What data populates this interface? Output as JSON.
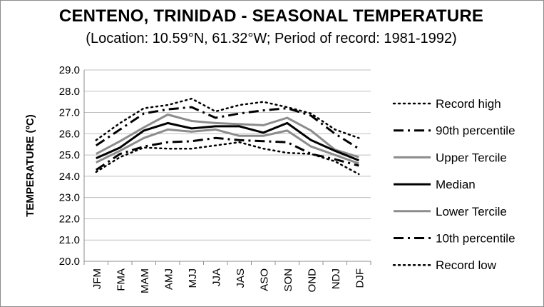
{
  "title": "CENTENO, TRINIDAD - SEASONAL TEMPERATURE",
  "subtitle": "(Location: 10.59°N, 61.32°W; Period of record: 1981-1992)",
  "chart_data": {
    "type": "line",
    "ylabel": "TEMPERATURE (ºC)",
    "xlabel": "",
    "ylim": [
      20.0,
      29.0
    ],
    "yticks": [
      "20.0",
      "21.0",
      "22.0",
      "23.0",
      "24.0",
      "25.0",
      "26.0",
      "27.0",
      "28.0",
      "29.0"
    ],
    "categories": [
      "JFM",
      "FMA",
      "MAM",
      "AMJ",
      "MJJ",
      "JJA",
      "JAS",
      "ASO",
      "SON",
      "OND",
      "NDJ",
      "DJF"
    ],
    "grid": "horizontal",
    "legend_position": "right",
    "series": [
      {
        "name": "Record high",
        "values": [
          25.7,
          26.5,
          27.2,
          27.35,
          27.65,
          27.05,
          27.35,
          27.5,
          27.25,
          26.95,
          26.2,
          25.8
        ],
        "color": "#000000",
        "style": "dotted"
      },
      {
        "name": "90th percentile",
        "values": [
          25.45,
          26.2,
          26.95,
          27.15,
          27.25,
          26.75,
          26.95,
          27.1,
          27.2,
          26.85,
          26.0,
          25.3
        ],
        "color": "#000000",
        "style": "dashdot"
      },
      {
        "name": "Upper Tercile",
        "values": [
          25.05,
          25.65,
          26.3,
          26.9,
          26.6,
          26.5,
          26.45,
          26.4,
          26.75,
          26.15,
          25.25,
          24.9
        ],
        "color": "#8c8c8c",
        "style": "solid"
      },
      {
        "name": "Median",
        "values": [
          24.85,
          25.35,
          26.15,
          26.5,
          26.25,
          26.35,
          26.35,
          26.05,
          26.5,
          25.7,
          25.2,
          24.75
        ],
        "color": "#000000",
        "style": "solid"
      },
      {
        "name": "Lower Tercile",
        "values": [
          24.65,
          25.2,
          25.8,
          26.2,
          26.1,
          26.2,
          25.9,
          25.9,
          26.15,
          25.4,
          25.0,
          24.6
        ],
        "color": "#8c8c8c",
        "style": "solid"
      },
      {
        "name": "10th percentile",
        "values": [
          24.3,
          25.05,
          25.4,
          25.6,
          25.65,
          25.8,
          25.7,
          25.65,
          25.6,
          25.05,
          24.8,
          24.5
        ],
        "color": "#000000",
        "style": "dashdot"
      },
      {
        "name": "Record low",
        "values": [
          24.2,
          24.9,
          25.35,
          25.3,
          25.3,
          25.45,
          25.6,
          25.3,
          25.1,
          25.05,
          24.7,
          24.1
        ],
        "color": "#000000",
        "style": "dotted"
      }
    ]
  }
}
